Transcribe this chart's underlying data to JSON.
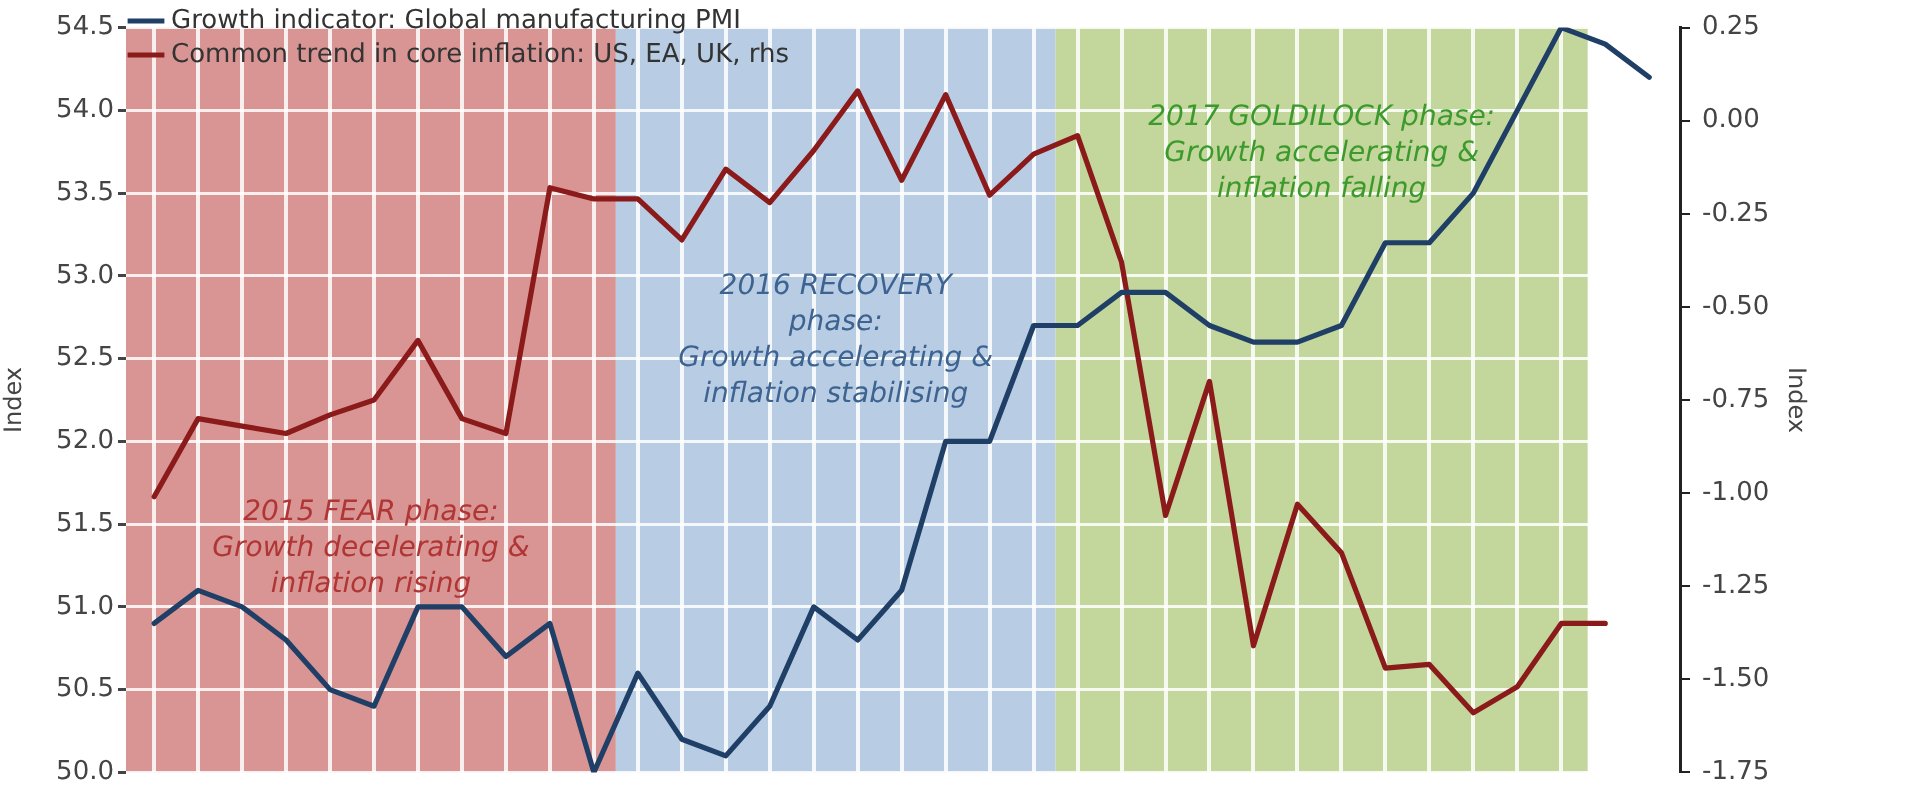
{
  "chart_data": {
    "type": "line",
    "ylabel": "Index",
    "y2label": "Index",
    "categories": [
      null,
      null,
      null,
      null,
      null,
      null,
      null,
      null,
      null,
      null,
      null,
      null,
      null,
      null,
      null,
      null,
      null,
      null,
      null,
      null,
      null,
      null,
      null,
      null,
      null,
      null,
      null,
      null,
      null,
      null,
      null,
      null,
      null,
      null,
      null
    ],
    "ylim": [
      50,
      54.5
    ],
    "yticks": [
      {
        "value": 50,
        "label": "50.0"
      },
      {
        "value": 50.5,
        "label": "50.5"
      },
      {
        "value": 51,
        "label": "51.0"
      },
      {
        "value": 51.5,
        "label": "51.5"
      },
      {
        "value": 52,
        "label": "52.0"
      },
      {
        "value": 52.5,
        "label": "52.5"
      },
      {
        "value": 53,
        "label": "53.0"
      },
      {
        "value": 53.5,
        "label": "53.5"
      },
      {
        "value": 54,
        "label": "54.0"
      },
      {
        "value": 54.5,
        "label": "54.5"
      }
    ],
    "y2lim": [
      -1.75,
      0.25
    ],
    "y2ticks": [
      {
        "value": -1.75,
        "label": "-1.75"
      },
      {
        "value": -1.5,
        "label": "-1.50"
      },
      {
        "value": -1.25,
        "label": "-1.25"
      },
      {
        "value": -1,
        "label": "-1.00"
      },
      {
        "value": -0.75,
        "label": "-0.75"
      },
      {
        "value": -0.5,
        "label": "-0.50"
      },
      {
        "value": -0.25,
        "label": "-0.25"
      },
      {
        "value": 0,
        "label": "0.00"
      },
      {
        "value": 0.25,
        "label": "0.25"
      }
    ],
    "series": [
      {
        "name": "Growth indicator: Global manufacturing PMI",
        "color": "#1f3f66",
        "values": [
          50.9,
          51.1,
          51.0,
          50.8,
          50.5,
          50.4,
          51.0,
          51.0,
          50.7,
          50.9,
          50.0,
          50.6,
          50.2,
          50.1,
          50.4,
          51.0,
          50.8,
          51.1,
          52.0,
          52.0,
          52.7,
          52.7,
          52.9,
          52.9,
          52.7,
          52.6,
          52.6,
          52.7,
          53.2,
          53.2,
          53.5,
          54.0,
          54.5,
          54.4,
          54.2
        ]
      },
      {
        "name": "Common trend in core inflation: US, EA, UK, rhs",
        "color": "#8b1a1a",
        "axis": "y2",
        "values": [
          -1.01,
          -0.8,
          -0.82,
          -0.84,
          -0.79,
          -0.75,
          -0.59,
          -0.8,
          -0.84,
          -0.18,
          -0.21,
          -0.21,
          -0.32,
          -0.13,
          -0.22,
          -0.08,
          0.08,
          -0.16,
          0.07,
          -0.2,
          -0.09,
          -0.04,
          -0.38,
          -1.06,
          -0.7,
          -1.41,
          -1.03,
          -1.16,
          -1.47,
          -1.46,
          -1.59,
          -1.52,
          -1.35,
          -1.35,
          null
        ]
      }
    ],
    "annotations": [
      "2015 FEAR phase:\nGrowth decelerating &\ninflation rising",
      "2016 RECOVERY\nphase:\nGrowth accelerating &\ninflation stabilising",
      "2017 GOLDILOCK phase:\nGrowth accelerating &\ninflation falling"
    ],
    "grid": true,
    "legend": "top left",
    "marker": "none",
    "line_style": "solid",
    "tick_labels": "y"
  }
}
